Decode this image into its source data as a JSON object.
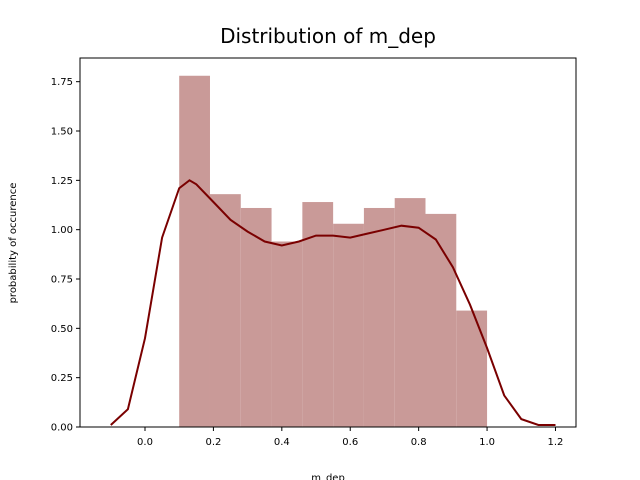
{
  "chart_data": {
    "type": "bar",
    "title": "Distribution of m_dep",
    "xlabel": "m_dep",
    "ylabel": "probability of occurence",
    "xlim": [
      -0.19,
      1.26
    ],
    "ylim": [
      0,
      1.87
    ],
    "xticks": [
      "0.0",
      "0.2",
      "0.4",
      "0.6",
      "0.8",
      "1.0",
      "1.2"
    ],
    "yticks": [
      "0.00",
      "0.25",
      "0.50",
      "0.75",
      "1.00",
      "1.25",
      "1.50",
      "1.75"
    ],
    "grid": false,
    "bins": [
      {
        "x0": 0.1,
        "x1": 0.19,
        "value": 1.78
      },
      {
        "x0": 0.19,
        "x1": 0.28,
        "value": 1.18
      },
      {
        "x0": 0.28,
        "x1": 0.37,
        "value": 1.11
      },
      {
        "x0": 0.37,
        "x1": 0.46,
        "value": 0.94
      },
      {
        "x0": 0.46,
        "x1": 0.55,
        "value": 1.14
      },
      {
        "x0": 0.55,
        "x1": 0.64,
        "value": 1.03
      },
      {
        "x0": 0.64,
        "x1": 0.73,
        "value": 1.11
      },
      {
        "x0": 0.73,
        "x1": 0.82,
        "value": 1.16
      },
      {
        "x0": 0.82,
        "x1": 0.91,
        "value": 1.08
      },
      {
        "x0": 0.91,
        "x1": 1.0,
        "value": 0.59
      }
    ],
    "kde": {
      "x": [
        -0.1,
        -0.05,
        0.0,
        0.05,
        0.1,
        0.13,
        0.15,
        0.2,
        0.25,
        0.3,
        0.35,
        0.4,
        0.45,
        0.5,
        0.55,
        0.6,
        0.65,
        0.7,
        0.75,
        0.8,
        0.85,
        0.9,
        0.95,
        1.0,
        1.05,
        1.1,
        1.15,
        1.2
      ],
      "y": [
        0.01,
        0.09,
        0.45,
        0.96,
        1.21,
        1.25,
        1.23,
        1.14,
        1.05,
        0.99,
        0.94,
        0.92,
        0.94,
        0.97,
        0.97,
        0.96,
        0.98,
        1.0,
        1.02,
        1.01,
        0.95,
        0.81,
        0.62,
        0.4,
        0.16,
        0.04,
        0.01,
        0.01
      ]
    },
    "colors": {
      "bar": "#c99a98",
      "line": "#7a0000"
    }
  }
}
